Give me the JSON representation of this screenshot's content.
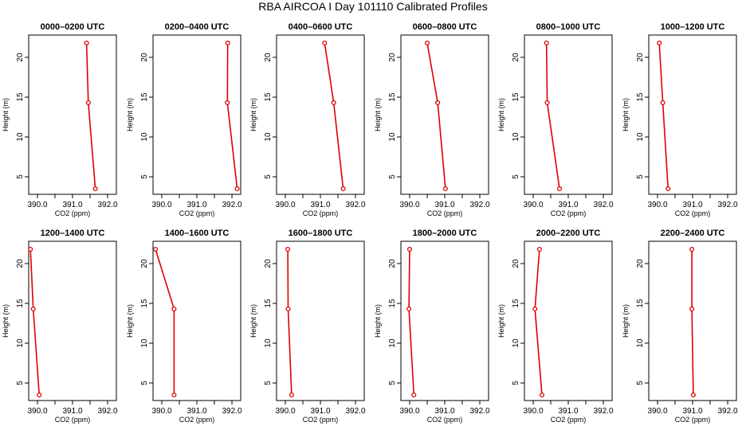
{
  "title": "RBA AIRCOA I  Day 101110  Calibrated Profiles",
  "colors": {
    "profile": "#dd0000",
    "axes": "#000000"
  },
  "chart_data": [
    {
      "type": "line",
      "title": "0000–0200 UTC",
      "xlabel": "CO2 (ppm)",
      "ylabel": "Height (m)",
      "xlim": [
        389.75,
        392.25
      ],
      "ylim": [
        2.8,
        22.8
      ],
      "xticks": [
        "390.0",
        "391.0",
        "392.0"
      ],
      "yticks": [
        "5",
        "10",
        "15",
        "20"
      ],
      "grid": false,
      "series": [
        {
          "x": [
            391.4,
            391.45,
            391.65
          ],
          "y": [
            21.8,
            14.3,
            3.5
          ]
        }
      ]
    },
    {
      "type": "line",
      "title": "0200–0400 UTC",
      "xlabel": "CO2 (ppm)",
      "ylabel": "Height (m)",
      "xlim": [
        389.75,
        392.25
      ],
      "ylim": [
        2.8,
        22.8
      ],
      "xticks": [
        "390.0",
        "391.0",
        "392.0"
      ],
      "yticks": [
        "5",
        "10",
        "15",
        "20"
      ],
      "grid": false,
      "series": [
        {
          "x": [
            391.88,
            391.87,
            392.15
          ],
          "y": [
            21.8,
            14.3,
            3.5
          ]
        }
      ]
    },
    {
      "type": "line",
      "title": "0400–0600 UTC",
      "xlabel": "CO2 (ppm)",
      "ylabel": "Height (m)",
      "xlim": [
        389.75,
        392.25
      ],
      "ylim": [
        2.8,
        22.8
      ],
      "xticks": [
        "390.0",
        "391.0",
        "392.0"
      ],
      "yticks": [
        "5",
        "10",
        "15",
        "20"
      ],
      "grid": false,
      "series": [
        {
          "x": [
            391.12,
            391.38,
            391.65
          ],
          "y": [
            21.8,
            14.3,
            3.5
          ]
        }
      ]
    },
    {
      "type": "line",
      "title": "0600–0800 UTC",
      "xlabel": "CO2 (ppm)",
      "ylabel": "Height (m)",
      "xlim": [
        389.75,
        392.25
      ],
      "ylim": [
        2.8,
        22.8
      ],
      "xticks": [
        "390.0",
        "391.0",
        "392.0"
      ],
      "yticks": [
        "5",
        "10",
        "15",
        "20"
      ],
      "grid": false,
      "series": [
        {
          "x": [
            390.5,
            390.8,
            391.02
          ],
          "y": [
            21.8,
            14.3,
            3.5
          ]
        }
      ]
    },
    {
      "type": "line",
      "title": "0800–1000 UTC",
      "xlabel": "CO2 (ppm)",
      "ylabel": "Height (m)",
      "xlim": [
        389.75,
        392.25
      ],
      "ylim": [
        2.8,
        22.8
      ],
      "xticks": [
        "390.0",
        "391.0",
        "392.0"
      ],
      "yticks": [
        "5",
        "10",
        "15",
        "20"
      ],
      "grid": false,
      "series": [
        {
          "x": [
            390.38,
            390.4,
            390.75
          ],
          "y": [
            21.8,
            14.3,
            3.5
          ]
        }
      ]
    },
    {
      "type": "line",
      "title": "1000–1200 UTC",
      "xlabel": "CO2 (ppm)",
      "ylabel": "Height (m)",
      "xlim": [
        389.75,
        392.25
      ],
      "ylim": [
        2.8,
        22.8
      ],
      "xticks": [
        "390.0",
        "391.0",
        "392.0"
      ],
      "yticks": [
        "5",
        "10",
        "15",
        "20"
      ],
      "grid": false,
      "series": [
        {
          "x": [
            390.05,
            390.15,
            390.3
          ],
          "y": [
            21.8,
            14.3,
            3.5
          ]
        }
      ]
    },
    {
      "type": "line",
      "title": "1200–1400 UTC",
      "xlabel": "CO2 (ppm)",
      "ylabel": "Height (m)",
      "xlim": [
        389.75,
        392.25
      ],
      "ylim": [
        2.8,
        22.8
      ],
      "xticks": [
        "390.0",
        "391.0",
        "392.0"
      ],
      "yticks": [
        "5",
        "10",
        "15",
        "20"
      ],
      "grid": false,
      "series": [
        {
          "x": [
            389.8,
            389.88,
            390.05
          ],
          "y": [
            21.8,
            14.3,
            3.5
          ]
        }
      ]
    },
    {
      "type": "line",
      "title": "1400–1600 UTC",
      "xlabel": "CO2 (ppm)",
      "ylabel": "Height (m)",
      "xlim": [
        389.75,
        392.25
      ],
      "ylim": [
        2.8,
        22.8
      ],
      "xticks": [
        "390.0",
        "391.0",
        "392.0"
      ],
      "yticks": [
        "5",
        "10",
        "15",
        "20"
      ],
      "grid": false,
      "series": [
        {
          "x": [
            389.82,
            390.35,
            390.35
          ],
          "y": [
            21.8,
            14.3,
            3.5
          ]
        }
      ]
    },
    {
      "type": "line",
      "title": "1600–1800 UTC",
      "xlabel": "CO2 (ppm)",
      "ylabel": "Height (m)",
      "xlim": [
        389.75,
        392.25
      ],
      "ylim": [
        2.8,
        22.8
      ],
      "xticks": [
        "390.0",
        "391.0",
        "392.0"
      ],
      "yticks": [
        "5",
        "10",
        "15",
        "20"
      ],
      "grid": false,
      "series": [
        {
          "x": [
            390.07,
            390.08,
            390.18
          ],
          "y": [
            21.8,
            14.3,
            3.5
          ]
        }
      ]
    },
    {
      "type": "line",
      "title": "1800–2000 UTC",
      "xlabel": "CO2 (ppm)",
      "ylabel": "Height (m)",
      "xlim": [
        389.75,
        392.25
      ],
      "ylim": [
        2.8,
        22.8
      ],
      "xticks": [
        "390.0",
        "391.0",
        "392.0"
      ],
      "yticks": [
        "5",
        "10",
        "15",
        "20"
      ],
      "grid": false,
      "series": [
        {
          "x": [
            390.0,
            389.98,
            390.12
          ],
          "y": [
            21.8,
            14.3,
            3.5
          ]
        }
      ]
    },
    {
      "type": "line",
      "title": "2000–2200 UTC",
      "xlabel": "CO2 (ppm)",
      "ylabel": "Height (m)",
      "xlim": [
        389.75,
        392.25
      ],
      "ylim": [
        2.8,
        22.8
      ],
      "xticks": [
        "390.0",
        "391.0",
        "392.0"
      ],
      "yticks": [
        "5",
        "10",
        "15",
        "20"
      ],
      "grid": false,
      "series": [
        {
          "x": [
            390.18,
            390.05,
            390.25
          ],
          "y": [
            21.8,
            14.3,
            3.5
          ]
        }
      ]
    },
    {
      "type": "line",
      "title": "2200–2400 UTC",
      "xlabel": "CO2 (ppm)",
      "ylabel": "Height (m)",
      "xlim": [
        389.75,
        392.25
      ],
      "ylim": [
        2.8,
        22.8
      ],
      "xticks": [
        "390.0",
        "391.0",
        "392.0"
      ],
      "yticks": [
        "5",
        "10",
        "15",
        "20"
      ],
      "grid": false,
      "series": [
        {
          "x": [
            390.98,
            390.98,
            391.02
          ],
          "y": [
            21.8,
            14.3,
            3.5
          ]
        }
      ]
    }
  ]
}
